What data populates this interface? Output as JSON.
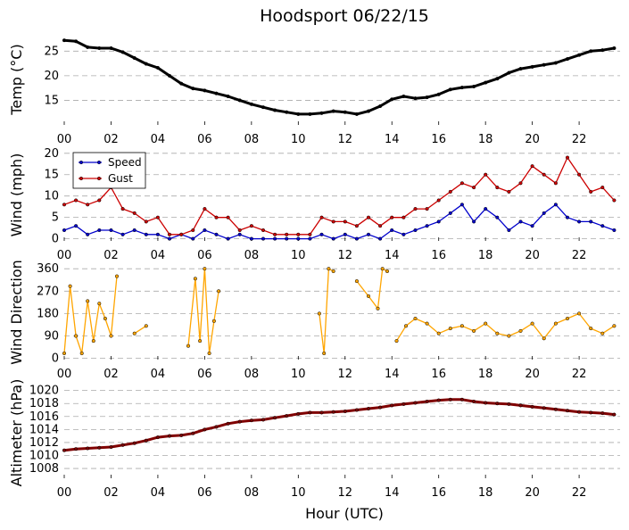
{
  "title": "Hoodsport 06/22/15",
  "xlabel": "Hour (UTC)",
  "x_tick_labels": [
    "00",
    "02",
    "04",
    "06",
    "08",
    "10",
    "12",
    "14",
    "16",
    "18",
    "20",
    "22"
  ],
  "colors": {
    "temp": "#000000",
    "speed": "#0000cc",
    "gust": "#cc0000",
    "direction": "#ffa500",
    "altimeter": "#800000",
    "grid": "#aaaaaa"
  },
  "legend": {
    "speed_label": "Speed",
    "gust_label": "Gust",
    "placement": "upper-left"
  },
  "chart_data": [
    {
      "type": "line",
      "ylabel": "Temp (°C)",
      "ylim": [
        10,
        28.5
      ],
      "yticks": [
        15,
        20,
        25
      ],
      "grid": true,
      "series": [
        {
          "color": "#000000",
          "x": [
            0,
            0.5,
            1,
            1.5,
            2,
            2.5,
            3,
            3.5,
            4,
            4.5,
            5,
            5.5,
            6,
            6.5,
            7,
            7.5,
            8,
            8.5,
            9,
            9.5,
            10,
            10.5,
            11,
            11.5,
            12,
            12.5,
            13,
            13.5,
            14,
            14.5,
            15,
            15.5,
            16,
            16.5,
            17,
            17.5,
            18,
            18.5,
            19,
            19.5,
            20,
            20.5,
            21,
            21.5,
            22,
            22.5,
            23,
            23.5
          ],
          "y": [
            27.2,
            27,
            25.8,
            25.6,
            25.6,
            24.8,
            23.6,
            22.4,
            21.6,
            20,
            18.4,
            17.4,
            17,
            16.4,
            15.8,
            15,
            14.2,
            13.6,
            13,
            12.6,
            12.2,
            12.2,
            12.4,
            12.8,
            12.6,
            12.2,
            12.8,
            13.8,
            15.2,
            15.8,
            15.4,
            15.6,
            16.2,
            17.2,
            17.6,
            17.8,
            18.6,
            19.4,
            20.6,
            21.4,
            21.8,
            22.2,
            22.6,
            23.4,
            24.2,
            25,
            25.2,
            25.6
          ]
        }
      ]
    },
    {
      "type": "line",
      "ylabel": "Wind (mph)",
      "ylim": [
        -0.5,
        21
      ],
      "yticks": [
        0,
        5,
        10,
        15,
        20
      ],
      "grid": true,
      "series": [
        {
          "name": "Speed",
          "color": "#0000cc",
          "x": [
            0,
            0.5,
            1,
            1.5,
            2,
            2.5,
            3,
            3.5,
            4,
            4.5,
            5,
            5.5,
            6,
            6.5,
            7,
            7.5,
            8,
            8.5,
            9,
            9.5,
            10,
            10.5,
            11,
            11.5,
            12,
            12.5,
            13,
            13.5,
            14,
            14.5,
            15,
            15.5,
            16,
            16.5,
            17,
            17.5,
            18,
            18.5,
            19,
            19.5,
            20,
            20.5,
            21,
            21.5,
            22,
            22.5,
            23,
            23.5
          ],
          "y": [
            2,
            3,
            1,
            2,
            2,
            1,
            2,
            1,
            1,
            0,
            1,
            0,
            2,
            1,
            0,
            1,
            0,
            0,
            0,
            0,
            0,
            0,
            1,
            0,
            1,
            0,
            1,
            0,
            2,
            1,
            2,
            3,
            4,
            6,
            8,
            4,
            7,
            5,
            2,
            4,
            3,
            6,
            8,
            5,
            4,
            4,
            3,
            2
          ]
        },
        {
          "name": "Gust",
          "color": "#cc0000",
          "x": [
            0,
            0.5,
            1,
            1.5,
            2,
            2.5,
            3,
            3.5,
            4,
            4.5,
            5,
            5.5,
            6,
            6.5,
            7,
            7.5,
            8,
            8.5,
            9,
            9.5,
            10,
            10.5,
            11,
            11.5,
            12,
            12.5,
            13,
            13.5,
            14,
            14.5,
            15,
            15.5,
            16,
            16.5,
            17,
            17.5,
            18,
            18.5,
            19,
            19.5,
            20,
            20.5,
            21,
            21.5,
            22,
            22.5,
            23,
            23.5
          ],
          "y": [
            8,
            9,
            8,
            9,
            12,
            7,
            6,
            4,
            5,
            1,
            1,
            2,
            7,
            5,
            5,
            2,
            3,
            2,
            1,
            1,
            1,
            1,
            5,
            4,
            4,
            3,
            5,
            3,
            5,
            5,
            7,
            7,
            9,
            11,
            13,
            12,
            15,
            12,
            11,
            13,
            17,
            15,
            13,
            19,
            15,
            11,
            12,
            9
          ]
        }
      ]
    },
    {
      "type": "line",
      "ylabel": "Wind Direction",
      "ylim": [
        -5,
        375
      ],
      "yticks": [
        0,
        90,
        180,
        270,
        360
      ],
      "grid": true,
      "series": [
        {
          "color": "#ffa500",
          "x": [
            0,
            0.25,
            0.5,
            0.75,
            1,
            1.25,
            1.5,
            1.75,
            2,
            2.25,
            null,
            3,
            3.5,
            null,
            5.3,
            5.6,
            5.8,
            6,
            6.2,
            6.4,
            6.6,
            null,
            10.9,
            11.1,
            11.3,
            11.5,
            null,
            12.5,
            13,
            13.4,
            13.6,
            13.8,
            null,
            14.2,
            14.6,
            15,
            15.5,
            16,
            16.5,
            17,
            17.5,
            18,
            18.5,
            19,
            19.5,
            20,
            20.5,
            21,
            21.5,
            22,
            22.5,
            23,
            23.5
          ],
          "y": [
            20,
            290,
            90,
            20,
            230,
            70,
            220,
            160,
            90,
            330,
            null,
            100,
            130,
            null,
            50,
            320,
            70,
            360,
            20,
            150,
            270,
            null,
            180,
            20,
            360,
            350,
            null,
            310,
            250,
            200,
            360,
            350,
            null,
            70,
            130,
            160,
            140,
            100,
            120,
            130,
            110,
            140,
            100,
            90,
            110,
            140,
            80,
            140,
            160,
            180,
            120,
            100,
            130
          ]
        }
      ]
    },
    {
      "type": "line",
      "ylabel": "Altimeter (hPa)",
      "ylim": [
        1006.5,
        1020.5
      ],
      "yticks": [
        1008,
        1010,
        1012,
        1014,
        1016,
        1018,
        1020
      ],
      "grid": true,
      "series": [
        {
          "color": "#800000",
          "x": [
            0,
            0.5,
            1,
            1.5,
            2,
            2.5,
            3,
            3.5,
            4,
            4.5,
            5,
            5.5,
            6,
            6.5,
            7,
            7.5,
            8,
            8.5,
            9,
            9.5,
            10,
            10.5,
            11,
            11.5,
            12,
            12.5,
            13,
            13.5,
            14,
            14.5,
            15,
            15.5,
            16,
            16.5,
            17,
            17.5,
            18,
            18.5,
            19,
            19.5,
            20,
            20.5,
            21,
            21.5,
            22,
            22.5,
            23,
            23.5
          ],
          "y": [
            1010.8,
            1011,
            1011.1,
            1011.2,
            1011.3,
            1011.6,
            1011.9,
            1012.3,
            1012.8,
            1013,
            1013.1,
            1013.4,
            1014,
            1014.4,
            1014.9,
            1015.2,
            1015.4,
            1015.5,
            1015.8,
            1016.1,
            1016.4,
            1016.6,
            1016.6,
            1016.7,
            1016.8,
            1017,
            1017.2,
            1017.4,
            1017.7,
            1017.9,
            1018.1,
            1018.3,
            1018.5,
            1018.6,
            1018.6,
            1018.3,
            1018.1,
            1018,
            1017.9,
            1017.7,
            1017.5,
            1017.3,
            1017.1,
            1016.9,
            1016.7,
            1016.6,
            1016.5,
            1016.3
          ]
        }
      ]
    }
  ]
}
